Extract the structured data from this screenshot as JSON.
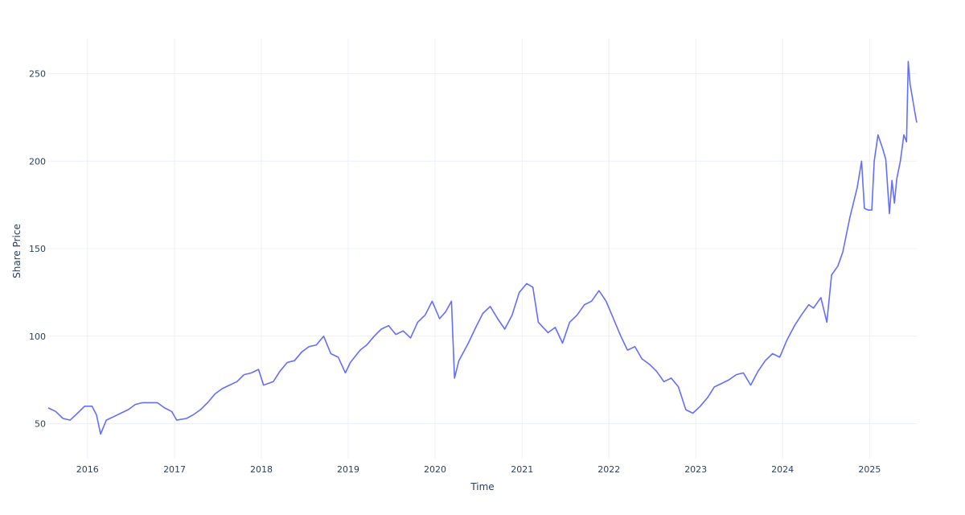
{
  "chart_data": {
    "type": "line",
    "title": "",
    "xlabel": "Time",
    "ylabel": "Share Price",
    "xlim": [
      "2015-07-20",
      "2025-07-18"
    ],
    "ylim": [
      30,
      270
    ],
    "grid": true,
    "x_ticks": [
      {
        "date": "2016-01-01",
        "label": "2016"
      },
      {
        "date": "2017-01-01",
        "label": "2017"
      },
      {
        "date": "2018-01-01",
        "label": "2018"
      },
      {
        "date": "2019-01-01",
        "label": "2019"
      },
      {
        "date": "2020-01-01",
        "label": "2020"
      },
      {
        "date": "2021-01-01",
        "label": "2021"
      },
      {
        "date": "2022-01-01",
        "label": "2022"
      },
      {
        "date": "2023-01-01",
        "label": "2023"
      },
      {
        "date": "2024-01-01",
        "label": "2024"
      },
      {
        "date": "2025-01-01",
        "label": "2025"
      }
    ],
    "y_ticks": [
      50,
      100,
      150,
      200,
      250
    ],
    "line_color": "#636efa",
    "series": [
      {
        "x": [
          "2015-07-20",
          "2015-08-20",
          "2015-09-20",
          "2015-10-20",
          "2015-11-20",
          "2015-12-20",
          "2016-01-20",
          "2016-02-08",
          "2016-02-25",
          "2016-03-20",
          "2016-04-20",
          "2016-05-20",
          "2016-06-20",
          "2016-07-20",
          "2016-08-20",
          "2016-09-20",
          "2016-10-20",
          "2016-11-20",
          "2016-12-20",
          "2017-01-10",
          "2017-02-20",
          "2017-03-20",
          "2017-04-20",
          "2017-05-20",
          "2017-06-20",
          "2017-07-20",
          "2017-08-20",
          "2017-09-20",
          "2017-10-20",
          "2017-11-20",
          "2017-12-20",
          "2018-01-10",
          "2018-02-20",
          "2018-03-20",
          "2018-04-20",
          "2018-05-20",
          "2018-06-20",
          "2018-07-20",
          "2018-08-20",
          "2018-09-20",
          "2018-10-20",
          "2018-11-20",
          "2018-12-20",
          "2019-01-10",
          "2019-02-20",
          "2019-03-20",
          "2019-04-20",
          "2019-05-20",
          "2019-06-20",
          "2019-07-20",
          "2019-08-20",
          "2019-09-20",
          "2019-10-20",
          "2019-11-20",
          "2019-12-20",
          "2020-01-20",
          "2020-02-15",
          "2020-03-10",
          "2020-03-23",
          "2020-04-10",
          "2020-05-20",
          "2020-06-20",
          "2020-07-20",
          "2020-08-20",
          "2020-09-20",
          "2020-10-20",
          "2020-11-20",
          "2020-12-20",
          "2021-01-20",
          "2021-02-15",
          "2021-03-10",
          "2021-04-20",
          "2021-05-20",
          "2021-06-20",
          "2021-07-20",
          "2021-08-20",
          "2021-09-20",
          "2021-10-20",
          "2021-11-20",
          "2021-12-20",
          "2022-01-20",
          "2022-02-20",
          "2022-03-20",
          "2022-04-20",
          "2022-05-20",
          "2022-06-20",
          "2022-07-20",
          "2022-08-20",
          "2022-09-20",
          "2022-10-20",
          "2022-11-20",
          "2022-12-20",
          "2023-01-20",
          "2023-02-20",
          "2023-03-20",
          "2023-04-20",
          "2023-05-20",
          "2023-06-20",
          "2023-07-20",
          "2023-08-20",
          "2023-09-20",
          "2023-10-20",
          "2023-11-20",
          "2023-12-20",
          "2024-01-20",
          "2024-02-20",
          "2024-03-20",
          "2024-04-20",
          "2024-05-10",
          "2024-05-25",
          "2024-06-10",
          "2024-07-05",
          "2024-07-25",
          "2024-08-20",
          "2024-09-10",
          "2024-10-10",
          "2024-11-10",
          "2024-11-28",
          "2024-12-10",
          "2024-12-26",
          "2025-01-10",
          "2025-01-20",
          "2025-02-05",
          "2025-02-25",
          "2025-03-10",
          "2025-03-25",
          "2025-04-05",
          "2025-04-15",
          "2025-04-25",
          "2025-05-10",
          "2025-05-25",
          "2025-06-05",
          "2025-06-12",
          "2025-06-20",
          "2025-06-30",
          "2025-07-10",
          "2025-07-18"
        ],
        "y": [
          59,
          57,
          53,
          52,
          56,
          60,
          60,
          55,
          44,
          52,
          54,
          56,
          58,
          61,
          62,
          62,
          62,
          59,
          57,
          52,
          53,
          55,
          58,
          62,
          67,
          70,
          72,
          74,
          78,
          79,
          81,
          72,
          74,
          80,
          85,
          86,
          91,
          94,
          95,
          100,
          90,
          88,
          79,
          85,
          92,
          95,
          100,
          104,
          106,
          101,
          103,
          99,
          108,
          112,
          120,
          110,
          114,
          120,
          76,
          86,
          96,
          105,
          113,
          117,
          110,
          104,
          112,
          125,
          130,
          128,
          108,
          102,
          105,
          96,
          108,
          112,
          118,
          120,
          126,
          120,
          110,
          100,
          92,
          94,
          87,
          84,
          80,
          74,
          76,
          71,
          58,
          56,
          60,
          65,
          71,
          73,
          75,
          78,
          79,
          72,
          80,
          86,
          90,
          88,
          98,
          106,
          112,
          118,
          116,
          119,
          122,
          108,
          135,
          140,
          148,
          168,
          185,
          200,
          173,
          172,
          172,
          200,
          215,
          207,
          201,
          170,
          189,
          176,
          190,
          200,
          215,
          211,
          257,
          244,
          236,
          228,
          222
        ]
      }
    ]
  }
}
